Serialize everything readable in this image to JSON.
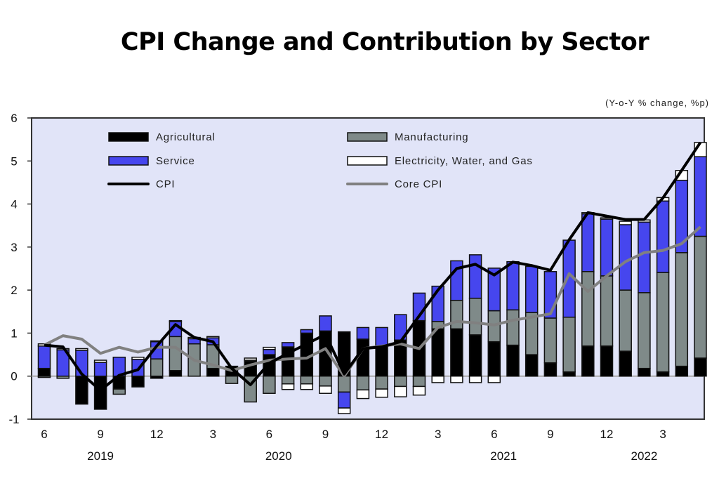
{
  "title": "CPI Change and Contribution by Sector",
  "unit_note": "(Y-o-Y % change, %p)",
  "chart_data": {
    "type": "bar",
    "subtype": "stacked bar with lines",
    "title": "CPI Change and Contribution by Sector",
    "ylim": [
      -1,
      6
    ],
    "yticks": [
      -1,
      0,
      1,
      2,
      3,
      4,
      5,
      6
    ],
    "grid": false,
    "legend_placement": "top-inside",
    "categories": [
      "2019-06",
      "2019-07",
      "2019-08",
      "2019-09",
      "2019-10",
      "2019-11",
      "2019-12",
      "2020-01",
      "2020-02",
      "2020-03",
      "2020-04",
      "2020-05",
      "2020-06",
      "2020-07",
      "2020-08",
      "2020-09",
      "2020-10",
      "2020-11",
      "2020-12",
      "2021-01",
      "2021-02",
      "2021-03",
      "2021-04",
      "2021-05",
      "2021-06",
      "2021-07",
      "2021-08",
      "2021-09",
      "2021-10",
      "2021-11",
      "2021-12",
      "2022-01",
      "2022-02",
      "2022-03",
      "2022-04",
      "2022-05"
    ],
    "x_tick_labels": [
      {
        "month_index": 0,
        "label": "6"
      },
      {
        "month_index": 3,
        "label": "9"
      },
      {
        "month_index": 6,
        "label": "12"
      },
      {
        "month_index": 9,
        "label": "3"
      },
      {
        "month_index": 12,
        "label": "6"
      },
      {
        "month_index": 15,
        "label": "9"
      },
      {
        "month_index": 18,
        "label": "12"
      },
      {
        "month_index": 21,
        "label": "3"
      },
      {
        "month_index": 24,
        "label": "6"
      },
      {
        "month_index": 27,
        "label": "9"
      },
      {
        "month_index": 30,
        "label": "12"
      },
      {
        "month_index": 33,
        "label": "3"
      }
    ],
    "year_labels": [
      {
        "month_index": 3,
        "label": "2019"
      },
      {
        "month_index": 12.5,
        "label": "2020"
      },
      {
        "month_index": 24.5,
        "label": "2021"
      },
      {
        "month_index": 32,
        "label": "2022"
      }
    ],
    "series": [
      {
        "name": "Agricultural",
        "kind": "bar",
        "color": "#000000",
        "values": [
          0.18,
          0,
          -0.65,
          -0.77,
          -0.3,
          -0.25,
          -0.05,
          0.13,
          0,
          0.18,
          0.23,
          0.35,
          0.5,
          0.68,
          1.0,
          1.05,
          1.03,
          0.86,
          0.7,
          0.84,
          1.29,
          1.1,
          1.1,
          0.96,
          0.8,
          0.72,
          0.5,
          0.31,
          0.1,
          0.7,
          0.7,
          0.58,
          0.18,
          0.1,
          0.23,
          0.42
        ]
      },
      {
        "name": "Manufacturing",
        "kind": "bar",
        "color": "#7f8a89",
        "values": [
          -0.03,
          -0.05,
          0,
          0,
          -0.12,
          0,
          0.4,
          0.79,
          0.75,
          0.55,
          -0.17,
          -0.6,
          -0.4,
          -0.18,
          -0.18,
          -0.23,
          -0.37,
          -0.32,
          -0.3,
          -0.24,
          -0.24,
          0.17,
          0.66,
          0.85,
          0.72,
          0.82,
          0.98,
          1.04,
          1.27,
          1.73,
          1.63,
          1.42,
          1.76,
          2.31,
          2.64,
          2.83
        ]
      },
      {
        "name": "Service",
        "kind": "bar",
        "color": "#4646ee",
        "values": [
          0.52,
          0.61,
          0.6,
          0.32,
          0.44,
          0.39,
          0.4,
          0.35,
          0.12,
          0.16,
          0,
          0.02,
          0.12,
          0.1,
          0.08,
          0.35,
          -0.37,
          0.27,
          0.43,
          0.59,
          0.64,
          0.82,
          0.92,
          1.01,
          0.99,
          1.12,
          1.07,
          1.08,
          1.79,
          1.34,
          1.32,
          1.52,
          1.64,
          1.66,
          1.68,
          1.85
        ]
      },
      {
        "name": "Electricity, Water, and Gas",
        "kind": "bar",
        "color": "#ffffff",
        "values": [
          0.05,
          0.03,
          0.04,
          0.05,
          0,
          0.05,
          0.02,
          0.02,
          0.03,
          0.03,
          0,
          0.05,
          0.05,
          -0.13,
          -0.13,
          -0.17,
          -0.13,
          -0.2,
          -0.19,
          -0.24,
          -0.2,
          -0.15,
          -0.15,
          -0.15,
          -0.15,
          0,
          0,
          0,
          0,
          0.03,
          0.03,
          0.08,
          0.05,
          0.08,
          0.23,
          0.33
        ]
      },
      {
        "name": "CPI",
        "kind": "line",
        "color": "#000000",
        "values": [
          0.72,
          0.68,
          0.05,
          -0.33,
          0.02,
          0.15,
          0.7,
          1.2,
          0.9,
          0.8,
          0.18,
          -0.2,
          0.3,
          0.53,
          0.75,
          0.97,
          0.05,
          0.64,
          0.68,
          0.8,
          1.4,
          2.0,
          2.5,
          2.6,
          2.35,
          2.65,
          2.57,
          2.46,
          3.17,
          3.8,
          3.72,
          3.64,
          3.64,
          4.14,
          4.78,
          5.43
        ]
      },
      {
        "name": "Core CPI",
        "kind": "line",
        "color": "#808080",
        "values": [
          0.72,
          0.94,
          0.86,
          0.53,
          0.67,
          0.56,
          0.67,
          0.67,
          0.37,
          0.26,
          0.13,
          0.26,
          0.37,
          0.4,
          0.42,
          0.64,
          0.0,
          0.64,
          0.7,
          0.75,
          0.64,
          1.13,
          1.27,
          1.24,
          1.19,
          1.3,
          1.37,
          1.45,
          2.38,
          1.97,
          2.33,
          2.66,
          2.87,
          2.92,
          3.08,
          3.47
        ]
      }
    ],
    "legend": [
      {
        "label": "Agricultural",
        "kind": "bar",
        "color": "#000000"
      },
      {
        "label": "Manufacturing",
        "kind": "bar",
        "color": "#7f8a89"
      },
      {
        "label": "Service",
        "kind": "bar",
        "color": "#4646ee"
      },
      {
        "label": "Electricity, Water, and Gas",
        "kind": "bar",
        "color": "#ffffff"
      },
      {
        "label": "CPI",
        "kind": "line",
        "color": "#000000"
      },
      {
        "label": "Core CPI",
        "kind": "line",
        "color": "#808080"
      }
    ],
    "plot_background": "#e1e4f8"
  }
}
